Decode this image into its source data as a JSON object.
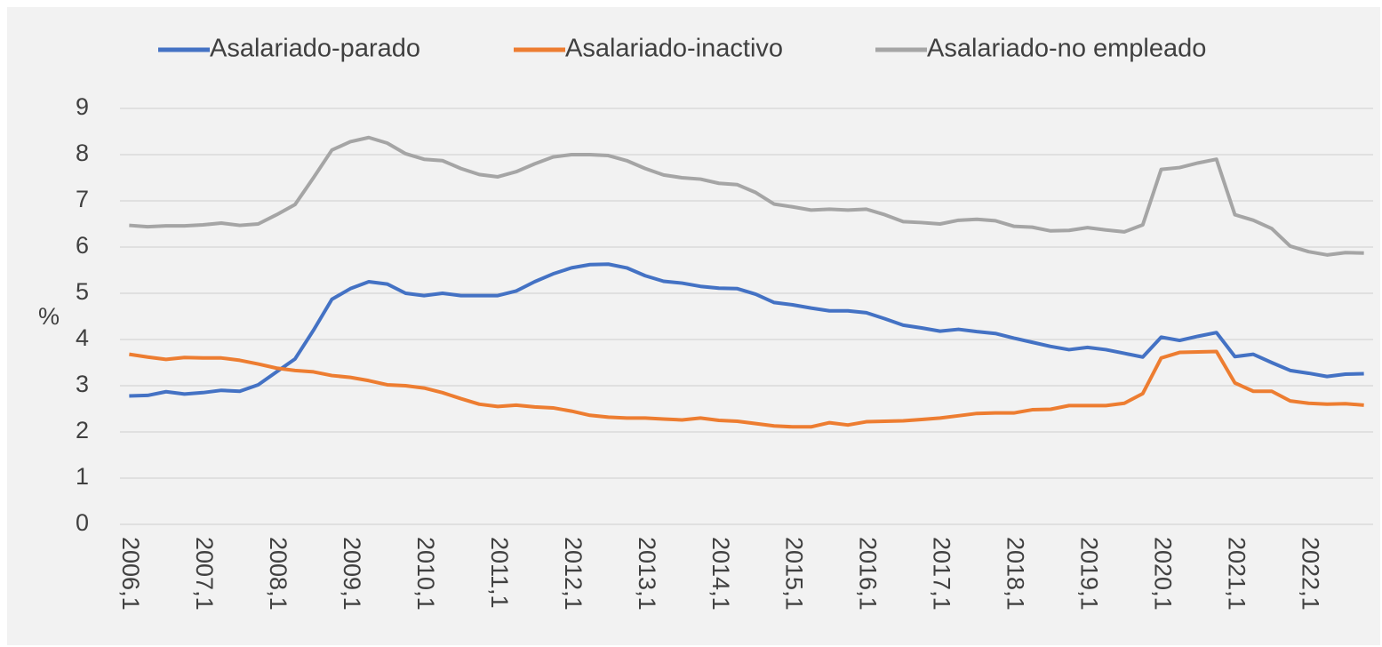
{
  "chart_data": {
    "type": "line",
    "y_label": "%",
    "categories": [
      "2006,1",
      null,
      null,
      null,
      "2007,1",
      null,
      null,
      null,
      "2008,1",
      null,
      null,
      null,
      "2009,1",
      null,
      null,
      null,
      "2010,1",
      null,
      null,
      null,
      "2011,1",
      null,
      null,
      null,
      "2012,1",
      null,
      null,
      null,
      "2013,1",
      null,
      null,
      null,
      "2014,1",
      null,
      null,
      null,
      "2015,1",
      null,
      null,
      null,
      "2016,1",
      null,
      null,
      null,
      "2017,1",
      null,
      null,
      null,
      "2018,1",
      null,
      null,
      null,
      "2019,1",
      null,
      null,
      null,
      "2020,1",
      null,
      null,
      null,
      "2021,1",
      null,
      null,
      null,
      "2022,1",
      null,
      null,
      null
    ],
    "series": [
      {
        "name": "Asalariado-parado",
        "color": "#4472c4",
        "values": [
          2.78,
          2.79,
          2.87,
          2.82,
          2.85,
          2.9,
          2.88,
          3.02,
          3.3,
          3.58,
          4.2,
          4.87,
          5.1,
          5.25,
          5.2,
          5.0,
          4.95,
          5.0,
          4.95,
          4.95,
          4.95,
          5.05,
          5.25,
          5.42,
          5.55,
          5.62,
          5.63,
          5.55,
          5.38,
          5.26,
          5.22,
          5.15,
          5.11,
          5.1,
          4.98,
          4.8,
          4.75,
          4.68,
          4.62,
          4.62,
          4.58,
          4.45,
          4.31,
          4.25,
          4.18,
          4.22,
          4.17,
          4.13,
          4.03,
          3.94,
          3.85,
          3.78,
          3.83,
          3.78,
          3.7,
          3.62,
          4.05,
          3.98,
          4.07,
          4.15,
          3.63,
          3.68,
          3.5,
          3.33,
          3.27,
          3.2,
          3.25,
          3.26
        ]
      },
      {
        "name": "Asalariado-inactivo",
        "color": "#ed7d31",
        "values": [
          3.68,
          3.62,
          3.57,
          3.61,
          3.6,
          3.6,
          3.55,
          3.47,
          3.38,
          3.33,
          3.3,
          3.22,
          3.18,
          3.11,
          3.02,
          3.0,
          2.95,
          2.85,
          2.72,
          2.6,
          2.55,
          2.58,
          2.54,
          2.52,
          2.45,
          2.36,
          2.32,
          2.3,
          2.3,
          2.28,
          2.26,
          2.3,
          2.25,
          2.23,
          2.18,
          2.13,
          2.11,
          2.11,
          2.2,
          2.15,
          2.22,
          2.23,
          2.24,
          2.27,
          2.3,
          2.35,
          2.4,
          2.41,
          2.41,
          2.48,
          2.49,
          2.57,
          2.57,
          2.57,
          2.62,
          2.83,
          3.6,
          3.72,
          3.73,
          3.74,
          3.06,
          2.88,
          2.88,
          2.67,
          2.62,
          2.6,
          2.61,
          2.58
        ]
      },
      {
        "name": "Asalariado-no empleado",
        "color": "#a5a5a5",
        "values": [
          6.47,
          6.44,
          6.46,
          6.46,
          6.48,
          6.52,
          6.47,
          6.5,
          6.7,
          6.92,
          7.5,
          8.1,
          8.28,
          8.37,
          8.25,
          8.02,
          7.9,
          7.87,
          7.7,
          7.57,
          7.52,
          7.63,
          7.8,
          7.95,
          8.0,
          8.0,
          7.98,
          7.87,
          7.7,
          7.56,
          7.5,
          7.47,
          7.38,
          7.35,
          7.18,
          6.93,
          6.87,
          6.8,
          6.82,
          6.8,
          6.82,
          6.7,
          6.55,
          6.53,
          6.5,
          6.58,
          6.6,
          6.57,
          6.45,
          6.43,
          6.35,
          6.36,
          6.42,
          6.37,
          6.33,
          6.48,
          7.68,
          7.72,
          7.82,
          7.9,
          6.7,
          6.58,
          6.4,
          6.02,
          5.9,
          5.83,
          5.88,
          5.87
        ]
      }
    ],
    "ylim": [
      0,
      9
    ],
    "yticks": [
      0,
      1,
      2,
      3,
      4,
      5,
      6,
      7,
      8,
      9
    ],
    "grid": true,
    "legend": "top"
  }
}
